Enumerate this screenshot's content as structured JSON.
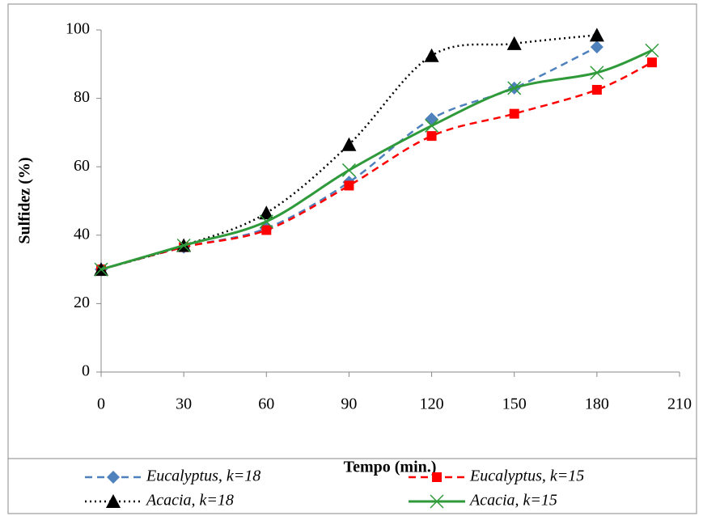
{
  "chart_data": {
    "type": "line",
    "x_label": "Tempo (min.)",
    "y_label": "Sulfidez (%)",
    "xlim": [
      0,
      210
    ],
    "xticks": [
      0,
      30,
      60,
      90,
      120,
      150,
      180,
      210
    ],
    "ylim": [
      0,
      100
    ],
    "yticks": [
      0,
      20,
      40,
      60,
      80,
      100
    ],
    "grid": false,
    "legend": "bottom",
    "series": [
      {
        "name": "Eucalyptus, k=18",
        "color": "#4f81bd",
        "dash": "dashed",
        "marker": "diamond",
        "x": [
          0,
          30,
          60,
          90,
          120,
          150,
          180
        ],
        "values": [
          30,
          36.5,
          42,
          55.5,
          74,
          83,
          95
        ]
      },
      {
        "name": "Eucalyptus, k=15",
        "color": "#ff0000",
        "dash": "dashed",
        "marker": "square",
        "x": [
          0,
          30,
          60,
          90,
          120,
          150,
          180,
          200
        ],
        "values": [
          30,
          36.5,
          41.5,
          54.5,
          69,
          75.5,
          82.5,
          90.5
        ]
      },
      {
        "name": "Acacia, k=18",
        "color": "#000000",
        "dash": "dotted",
        "marker": "triangle",
        "x": [
          0,
          30,
          60,
          90,
          120,
          150,
          180
        ],
        "values": [
          30,
          37,
          46.5,
          66.5,
          92.5,
          96,
          98.5
        ]
      },
      {
        "name": "Acacia, k=15",
        "color": "#2e9a3a",
        "dash": "solid",
        "marker": "cross",
        "x": [
          0,
          30,
          60,
          90,
          120,
          150,
          180,
          200
        ],
        "values": [
          30,
          37,
          44,
          59,
          72,
          83,
          87.5,
          94
        ]
      }
    ]
  }
}
